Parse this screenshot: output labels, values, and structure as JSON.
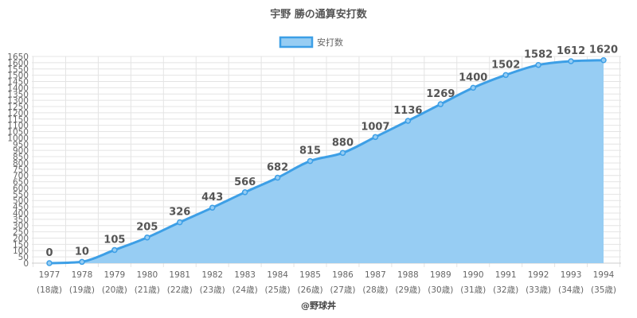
{
  "chart_data": {
    "type": "area",
    "title": "宇野 勝の通算安打数",
    "legend": {
      "label": "安打数",
      "placement": "top-center"
    },
    "categories": [
      "1977",
      "1978",
      "1979",
      "1980",
      "1981",
      "1982",
      "1983",
      "1984",
      "1985",
      "1986",
      "1987",
      "1988",
      "1989",
      "1990",
      "1991",
      "1992",
      "1993",
      "1994"
    ],
    "ages": [
      "(18歳)",
      "(19歳)",
      "(20歳)",
      "(21歳)",
      "(22歳)",
      "(23歳)",
      "(24歳)",
      "(25歳)",
      "(26歳)",
      "(27歳)",
      "(28歳)",
      "(29歳)",
      "(30歳)",
      "(31歳)",
      "(32歳)",
      "(33歳)",
      "(34歳)",
      "(35歳)"
    ],
    "values": [
      0,
      10,
      105,
      205,
      326,
      443,
      566,
      682,
      815,
      880,
      1007,
      1136,
      1269,
      1400,
      1502,
      1582,
      1612,
      1620
    ],
    "ylim": [
      0,
      1650
    ],
    "ytick_step": 50,
    "grid": true,
    "colors": {
      "fill": "#97cdf3",
      "line": "#3d9fe6",
      "grid": "#e4e4e4"
    }
  },
  "credit": "@野球丼"
}
